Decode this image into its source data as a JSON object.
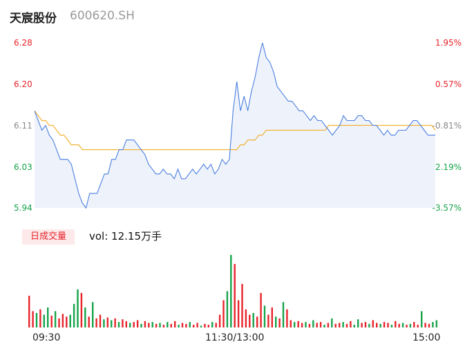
{
  "header": {
    "name": "天宸股份",
    "code": "600620.SH"
  },
  "price_axis": {
    "labels": [
      "6.28",
      "6.20",
      "6.11",
      "6.03",
      "5.94"
    ],
    "pct_labels": [
      "1.95%",
      "0.57%",
      "-0.81%",
      "-2.19%",
      "-3.57%"
    ],
    "label_colors": [
      "#e8232b",
      "#e8232b",
      "#888888",
      "#16a34a",
      "#16a34a"
    ]
  },
  "volume_panel": {
    "badge": "日成交量",
    "text": "vol: 12.15万手"
  },
  "time_axis": {
    "labels": [
      "09:30",
      "11:30/13:00",
      "15:00"
    ]
  },
  "colors": {
    "price_line": "#4a7fe0",
    "avg_line": "#f2b233",
    "area_fill": "#eef2fb",
    "volume_up": "#e8232b",
    "volume_down": "#16a34a"
  },
  "chart_data": {
    "type": "line",
    "title": "",
    "ylim": [
      5.94,
      6.28
    ],
    "y_ticks": [
      6.28,
      6.2,
      6.11,
      6.03,
      5.94
    ],
    "x_ticks": [
      "09:30",
      "11:30/13:00",
      "15:00"
    ],
    "series": [
      {
        "values": [
          6.14,
          6.12,
          6.1,
          6.11,
          6.09,
          6.08,
          6.06,
          6.04,
          6.04,
          6.04,
          6.03,
          6.0,
          5.97,
          5.95,
          5.94,
          5.97,
          5.97,
          5.97,
          5.99,
          6.01,
          6.01,
          6.04,
          6.04,
          6.06,
          6.06,
          6.08,
          6.08,
          6.08,
          6.07,
          6.06,
          6.05,
          6.03,
          6.02,
          6.01,
          6.01,
          6.02,
          6.01,
          6.01,
          6.0,
          6.02,
          6.0,
          6.0,
          6.01,
          6.02,
          6.01,
          6.02,
          6.03,
          6.02,
          6.03,
          6.01,
          6.02,
          6.04,
          6.03,
          6.04,
          6.14,
          6.2,
          6.14,
          6.17,
          6.14,
          6.18,
          6.21,
          6.25,
          6.28,
          6.25,
          6.24,
          6.22,
          6.19,
          6.18,
          6.17,
          6.16,
          6.16,
          6.15,
          6.14,
          6.14,
          6.13,
          6.12,
          6.13,
          6.12,
          6.12,
          6.11,
          6.1,
          6.09,
          6.1,
          6.11,
          6.13,
          6.12,
          6.12,
          6.12,
          6.13,
          6.13,
          6.12,
          6.12,
          6.11,
          6.11,
          6.1,
          6.09,
          6.1,
          6.09,
          6.09,
          6.1,
          6.1,
          6.1,
          6.11,
          6.12,
          6.12,
          6.11,
          6.1,
          6.09,
          6.09,
          6.09
        ]
      },
      {
        "values": [
          6.14,
          6.13,
          6.12,
          6.12,
          6.11,
          6.11,
          6.1,
          6.09,
          6.09,
          6.08,
          6.07,
          6.07,
          6.07,
          6.06,
          6.06,
          6.06,
          6.06,
          6.06,
          6.06,
          6.06,
          6.06,
          6.06,
          6.06,
          6.06,
          6.06,
          6.06,
          6.06,
          6.06,
          6.06,
          6.06,
          6.06,
          6.06,
          6.06,
          6.06,
          6.06,
          6.06,
          6.06,
          6.06,
          6.06,
          6.06,
          6.06,
          6.06,
          6.06,
          6.06,
          6.06,
          6.06,
          6.06,
          6.06,
          6.06,
          6.06,
          6.06,
          6.06,
          6.06,
          6.06,
          6.06,
          6.06,
          6.07,
          6.07,
          6.08,
          6.08,
          6.08,
          6.09,
          6.09,
          6.1,
          6.1,
          6.1,
          6.1,
          6.1,
          6.1,
          6.1,
          6.1,
          6.1,
          6.1,
          6.1,
          6.1,
          6.1,
          6.1,
          6.1,
          6.1,
          6.1,
          6.11,
          6.11,
          6.11,
          6.11,
          6.11,
          6.11,
          6.11,
          6.11,
          6.11,
          6.11,
          6.11,
          6.11,
          6.11,
          6.11,
          6.11,
          6.11,
          6.11,
          6.11,
          6.11,
          6.11,
          6.11,
          6.11,
          6.11,
          6.11,
          6.11,
          6.11,
          6.11,
          6.11,
          6.11,
          6.1
        ]
      }
    ],
    "volume": [
      {
        "v": 35,
        "c": "up"
      },
      {
        "v": 18,
        "c": "up"
      },
      {
        "v": 16,
        "c": "down"
      },
      {
        "v": 20,
        "c": "up"
      },
      {
        "v": 14,
        "c": "down"
      },
      {
        "v": 22,
        "c": "down"
      },
      {
        "v": 13,
        "c": "up"
      },
      {
        "v": 18,
        "c": "down"
      },
      {
        "v": 10,
        "c": "up"
      },
      {
        "v": 15,
        "c": "up"
      },
      {
        "v": 12,
        "c": "up"
      },
      {
        "v": 14,
        "c": "down"
      },
      {
        "v": 26,
        "c": "down"
      },
      {
        "v": 42,
        "c": "down"
      },
      {
        "v": 38,
        "c": "up"
      },
      {
        "v": 22,
        "c": "down"
      },
      {
        "v": 12,
        "c": "up"
      },
      {
        "v": 28,
        "c": "down"
      },
      {
        "v": 10,
        "c": "up"
      },
      {
        "v": 14,
        "c": "up"
      },
      {
        "v": 9,
        "c": "down"
      },
      {
        "v": 11,
        "c": "up"
      },
      {
        "v": 8,
        "c": "down"
      },
      {
        "v": 10,
        "c": "up"
      },
      {
        "v": 6,
        "c": "down"
      },
      {
        "v": 9,
        "c": "up"
      },
      {
        "v": 7,
        "c": "up"
      },
      {
        "v": 5,
        "c": "down"
      },
      {
        "v": 6,
        "c": "up"
      },
      {
        "v": 8,
        "c": "up"
      },
      {
        "v": 4,
        "c": "down"
      },
      {
        "v": 7,
        "c": "up"
      },
      {
        "v": 5,
        "c": "up"
      },
      {
        "v": 6,
        "c": "down"
      },
      {
        "v": 4,
        "c": "up"
      },
      {
        "v": 5,
        "c": "down"
      },
      {
        "v": 3,
        "c": "up"
      },
      {
        "v": 6,
        "c": "down"
      },
      {
        "v": 4,
        "c": "up"
      },
      {
        "v": 7,
        "c": "up"
      },
      {
        "v": 3,
        "c": "down"
      },
      {
        "v": 5,
        "c": "up"
      },
      {
        "v": 4,
        "c": "up"
      },
      {
        "v": 6,
        "c": "down"
      },
      {
        "v": 3,
        "c": "up"
      },
      {
        "v": 5,
        "c": "up"
      },
      {
        "v": 2,
        "c": "down"
      },
      {
        "v": 4,
        "c": "up"
      },
      {
        "v": 3,
        "c": "up"
      },
      {
        "v": 6,
        "c": "down"
      },
      {
        "v": 5,
        "c": "up"
      },
      {
        "v": 14,
        "c": "up"
      },
      {
        "v": 30,
        "c": "up"
      },
      {
        "v": 40,
        "c": "down"
      },
      {
        "v": 80,
        "c": "down"
      },
      {
        "v": 70,
        "c": "up"
      },
      {
        "v": 30,
        "c": "up"
      },
      {
        "v": 48,
        "c": "up"
      },
      {
        "v": 20,
        "c": "up"
      },
      {
        "v": 14,
        "c": "up"
      },
      {
        "v": 16,
        "c": "down"
      },
      {
        "v": 12,
        "c": "up"
      },
      {
        "v": 38,
        "c": "up"
      },
      {
        "v": 24,
        "c": "down"
      },
      {
        "v": 14,
        "c": "up"
      },
      {
        "v": 22,
        "c": "up"
      },
      {
        "v": 12,
        "c": "down"
      },
      {
        "v": 10,
        "c": "up"
      },
      {
        "v": 28,
        "c": "down"
      },
      {
        "v": 20,
        "c": "up"
      },
      {
        "v": 8,
        "c": "up"
      },
      {
        "v": 6,
        "c": "down"
      },
      {
        "v": 7,
        "c": "up"
      },
      {
        "v": 5,
        "c": "up"
      },
      {
        "v": 6,
        "c": "down"
      },
      {
        "v": 4,
        "c": "up"
      },
      {
        "v": 8,
        "c": "down"
      },
      {
        "v": 5,
        "c": "up"
      },
      {
        "v": 6,
        "c": "up"
      },
      {
        "v": 3,
        "c": "down"
      },
      {
        "v": 5,
        "c": "up"
      },
      {
        "v": 10,
        "c": "down"
      },
      {
        "v": 4,
        "c": "up"
      },
      {
        "v": 5,
        "c": "up"
      },
      {
        "v": 6,
        "c": "down"
      },
      {
        "v": 4,
        "c": "up"
      },
      {
        "v": 7,
        "c": "up"
      },
      {
        "v": 3,
        "c": "down"
      },
      {
        "v": 9,
        "c": "down"
      },
      {
        "v": 5,
        "c": "up"
      },
      {
        "v": 6,
        "c": "up"
      },
      {
        "v": 4,
        "c": "down"
      },
      {
        "v": 8,
        "c": "up"
      },
      {
        "v": 5,
        "c": "up"
      },
      {
        "v": 4,
        "c": "down"
      },
      {
        "v": 6,
        "c": "up"
      },
      {
        "v": 5,
        "c": "up"
      },
      {
        "v": 3,
        "c": "down"
      },
      {
        "v": 7,
        "c": "up"
      },
      {
        "v": 4,
        "c": "up"
      },
      {
        "v": 5,
        "c": "down"
      },
      {
        "v": 3,
        "c": "up"
      },
      {
        "v": 4,
        "c": "down"
      },
      {
        "v": 6,
        "c": "up"
      },
      {
        "v": 3,
        "c": "up"
      },
      {
        "v": 18,
        "c": "down"
      },
      {
        "v": 5,
        "c": "up"
      },
      {
        "v": 4,
        "c": "up"
      },
      {
        "v": 6,
        "c": "down"
      },
      {
        "v": 8,
        "c": "down"
      }
    ]
  }
}
